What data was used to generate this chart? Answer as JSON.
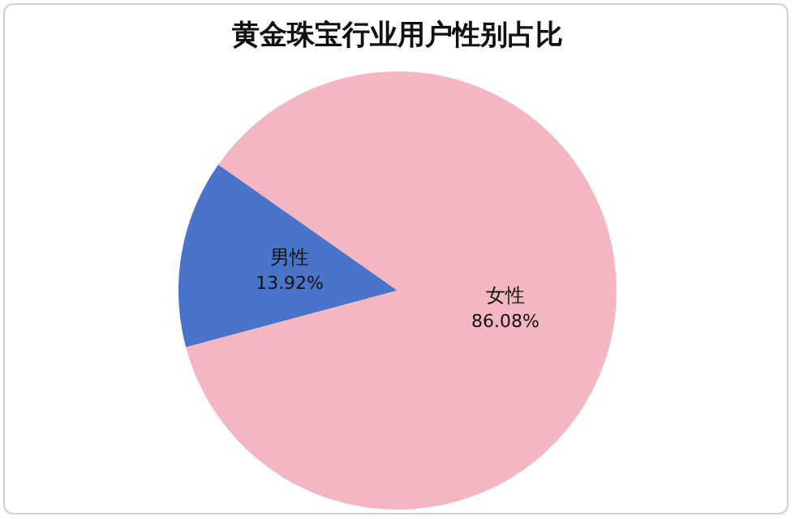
{
  "chart_data": {
    "type": "pie",
    "title": "黄金珠宝行业用户性别占比",
    "categories": [
      "男性",
      "女性"
    ],
    "values": [
      13.92,
      86.08
    ],
    "colors": [
      "#4a74c9",
      "#f4b7c1"
    ],
    "value_labels": [
      "13.92%",
      "86.08%"
    ],
    "legend": false
  }
}
